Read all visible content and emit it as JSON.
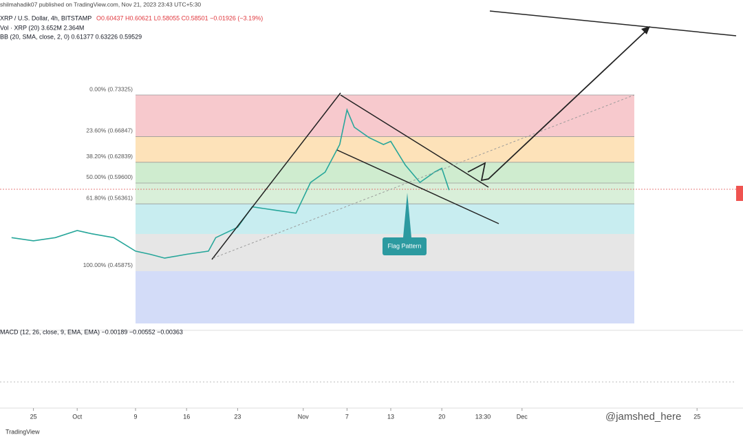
{
  "header": {
    "published": "shilmahadik07 published on TradingView.com, Nov 21, 2023 23:43 UTC+5:30",
    "symbol": "XRP / U.S. Dollar, 4h, BITSTAMP",
    "ohlc": "O0.60437 H0.60621 L0.58055 C0.58501 −0.01926 (−3.19%)",
    "volume": "Vol · XRP (20) 3.652M 2.364M",
    "bb": "BB (20, SMA, close, 2, 0) 0.61377 0.63226 0.59529",
    "macd": "MACD (12, 26, close, 9, EMA, EMA) −0.00189 −0.00552 −0.00363",
    "annotation": "Flag Pattern",
    "watermark": "@jamshed_here",
    "brand": "TradingView"
  },
  "chart_data": {
    "type": "line",
    "x": [
      "2023-09-22",
      "2023-09-25",
      "2023-09-28",
      "2023-10-01",
      "2023-10-03",
      "2023-10-06",
      "2023-10-09",
      "2023-10-11",
      "2023-10-13",
      "2023-10-16",
      "2023-10-19",
      "2023-10-20",
      "2023-10-23",
      "2023-10-25",
      "2023-10-28",
      "2023-10-31",
      "2023-11-02",
      "2023-11-04",
      "2023-11-06",
      "2023-11-07",
      "2023-11-08",
      "2023-11-10",
      "2023-11-12",
      "2023-11-13",
      "2023-11-15",
      "2023-11-17",
      "2023-11-19",
      "2023-11-20",
      "2023-11-21"
    ],
    "series": [
      {
        "name": "XRP / U.S. Dollar",
        "color": "#26a69a",
        "values": [
          0.511,
          0.506,
          0.511,
          0.522,
          0.517,
          0.511,
          0.49,
          0.485,
          0.479,
          0.485,
          0.49,
          0.511,
          0.527,
          0.559,
          0.554,
          0.549,
          0.597,
          0.613,
          0.656,
          0.71,
          0.683,
          0.667,
          0.656,
          0.661,
          0.624,
          0.597,
          0.613,
          0.619,
          0.58501
        ]
      }
    ],
    "xticks": [
      {
        "value": "2023-09-25",
        "label": "25"
      },
      {
        "value": "2023-10-01",
        "label": "Oct"
      },
      {
        "value": "2023-10-09",
        "label": "9"
      },
      {
        "value": "2023-10-16",
        "label": "16"
      },
      {
        "value": "2023-10-23",
        "label": "23"
      },
      {
        "value": "2023-11-01",
        "label": "Nov"
      },
      {
        "value": "2023-11-07",
        "label": "7"
      },
      {
        "value": "2023-11-13",
        "label": "13"
      },
      {
        "value": "2023-11-20",
        "label": "20"
      },
      {
        "value": "2023-12-01",
        "label": "Dec"
      },
      {
        "value": "2023-12-25",
        "label": "25"
      }
    ],
    "fib_levels": [
      {
        "label": "0.00% (0.73325)",
        "value": 0.73325,
        "color": "#f7c9cd"
      },
      {
        "label": "23.60% (0.66847)",
        "value": 0.66847,
        "color": "#fde2b9"
      },
      {
        "label": "38.20% (0.62839)",
        "value": 0.62839,
        "color": "#cfeccf"
      },
      {
        "label": "50.00% (0.59600)",
        "value": 0.596,
        "color": "#d9efd9"
      },
      {
        "label": "61.80% (0.56361)",
        "value": 0.56361,
        "color": "#c8edf0"
      },
      {
        "label": "100.00% (0.45875)",
        "value": 0.45875,
        "color": "#cfd8f8"
      }
    ]
  }
}
